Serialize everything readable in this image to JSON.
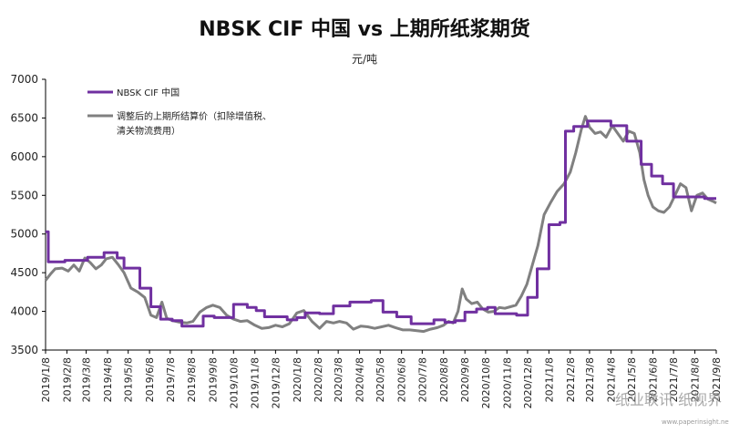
{
  "title": "NBSK CIF 中国 vs 上期所纸浆期货",
  "subtitle": "元/吨",
  "watermark": "纸业联讯 纸视界",
  "watermark_url": "www.paperinsight.net",
  "colors": {
    "nbsk": "#7030A0",
    "futures": "#808080",
    "axis": "#000000"
  },
  "chart_data": {
    "type": "line",
    "title": "NBSK CIF 中国 vs 上期所纸浆期货",
    "ylabel": "元/吨",
    "ylim": [
      3500,
      7000
    ],
    "yticks": [
      3500,
      4000,
      4500,
      5000,
      5500,
      6000,
      6500,
      7000
    ],
    "xlim": [
      "2019-01-08",
      "2021-09-08"
    ],
    "xticks": [
      "2019/1/8",
      "2019/2/8",
      "2019/3/8",
      "2019/4/8",
      "2019/5/8",
      "2019/6/8",
      "2019/7/8",
      "2019/8/8",
      "2019/9/8",
      "2019/10/8",
      "2019/11/8",
      "2019/12/8",
      "2020/1/8",
      "2020/2/8",
      "2020/3/8",
      "2020/4/8",
      "2020/5/8",
      "2020/6/8",
      "2020/7/8",
      "2020/8/8",
      "2020/9/8",
      "2020/10/8",
      "2020/11/8",
      "2020/12/8",
      "2021/1/8",
      "2021/2/8",
      "2021/3/8",
      "2021/4/8",
      "2021/5/8",
      "2021/6/8",
      "2021/7/8",
      "2021/8/8",
      "2021/9/8"
    ],
    "grid": false,
    "legend_position": "top-left",
    "series": [
      {
        "name": "NBSK CIF 中国",
        "color": "#7030A0",
        "step": true,
        "points": [
          [
            "2019-01-08",
            5030
          ],
          [
            "2019-01-12",
            4640
          ],
          [
            "2019-02-05",
            4660
          ],
          [
            "2019-03-10",
            4700
          ],
          [
            "2019-04-03",
            4760
          ],
          [
            "2019-04-22",
            4690
          ],
          [
            "2019-05-02",
            4560
          ],
          [
            "2019-05-25",
            4300
          ],
          [
            "2019-06-10",
            4060
          ],
          [
            "2019-06-24",
            3900
          ],
          [
            "2019-07-11",
            3880
          ],
          [
            "2019-07-25",
            3810
          ],
          [
            "2019-08-25",
            3940
          ],
          [
            "2019-09-10",
            3920
          ],
          [
            "2019-10-08",
            4090
          ],
          [
            "2019-10-28",
            4050
          ],
          [
            "2019-11-10",
            4010
          ],
          [
            "2019-11-22",
            3930
          ],
          [
            "2019-12-25",
            3890
          ],
          [
            "2020-01-08",
            3920
          ],
          [
            "2020-01-20",
            3980
          ],
          [
            "2020-02-10",
            3970
          ],
          [
            "2020-03-01",
            4070
          ],
          [
            "2020-03-25",
            4120
          ],
          [
            "2020-04-25",
            4140
          ],
          [
            "2020-05-12",
            3990
          ],
          [
            "2020-06-01",
            3930
          ],
          [
            "2020-06-22",
            3840
          ],
          [
            "2020-07-25",
            3890
          ],
          [
            "2020-08-10",
            3860
          ],
          [
            "2020-08-25",
            3880
          ],
          [
            "2020-09-08",
            3990
          ],
          [
            "2020-09-25",
            4030
          ],
          [
            "2020-10-11",
            4050
          ],
          [
            "2020-10-22",
            3970
          ],
          [
            "2020-11-22",
            3950
          ],
          [
            "2020-12-08",
            4180
          ],
          [
            "2020-12-22",
            4550
          ],
          [
            "2021-01-08",
            5120
          ],
          [
            "2021-01-24",
            5150
          ],
          [
            "2021-02-01",
            6330
          ],
          [
            "2021-02-13",
            6390
          ],
          [
            "2021-03-05",
            6460
          ],
          [
            "2021-04-08",
            6400
          ],
          [
            "2021-05-01",
            6200
          ],
          [
            "2021-05-22",
            5900
          ],
          [
            "2021-06-06",
            5750
          ],
          [
            "2021-06-22",
            5650
          ],
          [
            "2021-07-08",
            5480
          ],
          [
            "2021-08-22",
            5460
          ],
          [
            "2021-09-08",
            5460
          ]
        ]
      },
      {
        "name": "调整后的上期所结算价（扣除增值税、清关物流费用）",
        "color": "#808080",
        "step": false,
        "points": [
          [
            "2019-01-08",
            4400
          ],
          [
            "2019-01-15",
            4480
          ],
          [
            "2019-01-22",
            4550
          ],
          [
            "2019-02-01",
            4560
          ],
          [
            "2019-02-10",
            4520
          ],
          [
            "2019-02-18",
            4600
          ],
          [
            "2019-02-26",
            4520
          ],
          [
            "2019-03-06",
            4690
          ],
          [
            "2019-03-14",
            4630
          ],
          [
            "2019-03-22",
            4550
          ],
          [
            "2019-03-30",
            4600
          ],
          [
            "2019-04-06",
            4680
          ],
          [
            "2019-04-15",
            4700
          ],
          [
            "2019-04-24",
            4600
          ],
          [
            "2019-05-02",
            4500
          ],
          [
            "2019-05-12",
            4300
          ],
          [
            "2019-05-22",
            4250
          ],
          [
            "2019-06-01",
            4180
          ],
          [
            "2019-06-10",
            3950
          ],
          [
            "2019-06-18",
            3920
          ],
          [
            "2019-06-26",
            4120
          ],
          [
            "2019-07-03",
            3910
          ],
          [
            "2019-07-12",
            3880
          ],
          [
            "2019-07-22",
            3860
          ],
          [
            "2019-08-01",
            3850
          ],
          [
            "2019-08-10",
            3870
          ],
          [
            "2019-08-20",
            3990
          ],
          [
            "2019-08-30",
            4050
          ],
          [
            "2019-09-08",
            4080
          ],
          [
            "2019-09-18",
            4050
          ],
          [
            "2019-09-28",
            3950
          ],
          [
            "2019-10-08",
            3900
          ],
          [
            "2019-10-18",
            3870
          ],
          [
            "2019-10-28",
            3880
          ],
          [
            "2019-11-08",
            3820
          ],
          [
            "2019-11-18",
            3780
          ],
          [
            "2019-11-28",
            3790
          ],
          [
            "2019-12-08",
            3820
          ],
          [
            "2019-12-18",
            3800
          ],
          [
            "2019-12-28",
            3840
          ],
          [
            "2020-01-08",
            3980
          ],
          [
            "2020-01-18",
            4010
          ],
          [
            "2020-01-30",
            3870
          ],
          [
            "2020-02-10",
            3780
          ],
          [
            "2020-02-20",
            3870
          ],
          [
            "2020-03-01",
            3850
          ],
          [
            "2020-03-10",
            3870
          ],
          [
            "2020-03-20",
            3850
          ],
          [
            "2020-03-30",
            3770
          ],
          [
            "2020-04-10",
            3810
          ],
          [
            "2020-04-20",
            3800
          ],
          [
            "2020-04-30",
            3780
          ],
          [
            "2020-05-10",
            3800
          ],
          [
            "2020-05-20",
            3820
          ],
          [
            "2020-05-30",
            3790
          ],
          [
            "2020-06-10",
            3760
          ],
          [
            "2020-06-20",
            3760
          ],
          [
            "2020-06-30",
            3750
          ],
          [
            "2020-07-10",
            3740
          ],
          [
            "2020-07-20",
            3770
          ],
          [
            "2020-07-30",
            3790
          ],
          [
            "2020-08-08",
            3820
          ],
          [
            "2020-08-15",
            3870
          ],
          [
            "2020-08-22",
            3850
          ],
          [
            "2020-08-29",
            4000
          ],
          [
            "2020-09-04",
            4290
          ],
          [
            "2020-09-10",
            4160
          ],
          [
            "2020-09-18",
            4100
          ],
          [
            "2020-09-26",
            4120
          ],
          [
            "2020-10-04",
            4030
          ],
          [
            "2020-10-12",
            3990
          ],
          [
            "2020-10-20",
            4000
          ],
          [
            "2020-10-28",
            4050
          ],
          [
            "2020-11-05",
            4040
          ],
          [
            "2020-11-13",
            4060
          ],
          [
            "2020-11-21",
            4080
          ],
          [
            "2020-11-29",
            4200
          ],
          [
            "2020-12-07",
            4350
          ],
          [
            "2020-12-15",
            4600
          ],
          [
            "2020-12-23",
            4850
          ],
          [
            "2021-01-01",
            5250
          ],
          [
            "2021-01-10",
            5400
          ],
          [
            "2021-01-20",
            5550
          ],
          [
            "2021-01-30",
            5650
          ],
          [
            "2021-02-08",
            5800
          ],
          [
            "2021-02-16",
            6050
          ],
          [
            "2021-02-24",
            6350
          ],
          [
            "2021-03-02",
            6520
          ],
          [
            "2021-03-08",
            6380
          ],
          [
            "2021-03-16",
            6300
          ],
          [
            "2021-03-24",
            6320
          ],
          [
            "2021-04-01",
            6250
          ],
          [
            "2021-04-10",
            6400
          ],
          [
            "2021-04-18",
            6300
          ],
          [
            "2021-04-26",
            6200
          ],
          [
            "2021-05-04",
            6330
          ],
          [
            "2021-05-12",
            6300
          ],
          [
            "2021-05-20",
            6050
          ],
          [
            "2021-05-26",
            5700
          ],
          [
            "2021-06-01",
            5500
          ],
          [
            "2021-06-08",
            5350
          ],
          [
            "2021-06-16",
            5300
          ],
          [
            "2021-06-24",
            5280
          ],
          [
            "2021-07-02",
            5350
          ],
          [
            "2021-07-10",
            5500
          ],
          [
            "2021-07-18",
            5650
          ],
          [
            "2021-07-26",
            5600
          ],
          [
            "2021-08-03",
            5300
          ],
          [
            "2021-08-11",
            5500
          ],
          [
            "2021-08-19",
            5530
          ],
          [
            "2021-08-27",
            5450
          ],
          [
            "2021-09-04",
            5420
          ],
          [
            "2021-09-08",
            5400
          ]
        ]
      }
    ]
  }
}
